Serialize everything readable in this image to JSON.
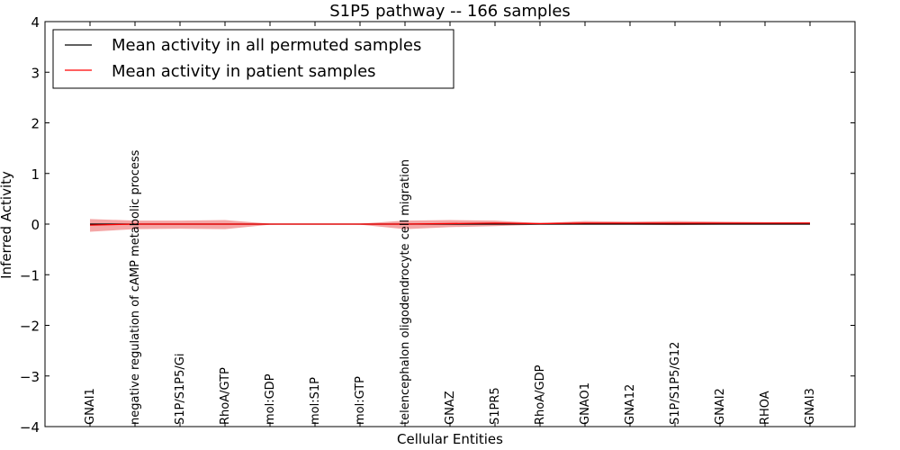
{
  "chart_data": {
    "type": "line",
    "title": "S1P5 pathway -- 166 samples",
    "xlabel": "Cellular Entities",
    "ylabel": "Inferred Activity",
    "ylim": [
      -4,
      4
    ],
    "yticks": [
      -4,
      -3,
      -2,
      -1,
      0,
      1,
      2,
      3,
      4
    ],
    "categories": [
      "GNAI1",
      "negative regulation of cAMP metabolic process",
      "S1P/S1P5/Gi",
      "RhoA/GTP",
      "mol:GDP",
      "mol:S1P",
      "mol:GTP",
      "telencephalon oligodendrocyte cell migration",
      "GNAZ",
      "S1PR5",
      "RhoA/GDP",
      "GNAO1",
      "GNA12",
      "S1P/S1P5/G12",
      "GNAI2",
      "RHOA",
      "GNAI3"
    ],
    "series": [
      {
        "name": "Mean activity in all permuted samples",
        "color": "#000000",
        "values": [
          0.0,
          0.0,
          0.0,
          0.0,
          0.0,
          0.0,
          0.0,
          0.0,
          0.0,
          0.0,
          0.0,
          0.0,
          0.0,
          0.0,
          0.0,
          0.0,
          0.0
        ]
      },
      {
        "name": "Mean activity in patient samples",
        "color": "#ff0000",
        "values": [
          -0.02,
          0.0,
          0.0,
          0.0,
          0.0,
          0.0,
          0.0,
          0.0,
          0.01,
          0.02,
          0.01,
          0.02,
          0.02,
          0.02,
          0.02,
          0.02,
          0.02
        ],
        "band_upper": [
          0.1,
          0.07,
          0.07,
          0.08,
          0.01,
          0.0,
          0.01,
          0.07,
          0.08,
          0.07,
          0.02,
          0.06,
          0.05,
          0.06,
          0.05,
          0.04,
          0.04
        ],
        "band_lower": [
          -0.15,
          -0.1,
          -0.09,
          -0.1,
          -0.01,
          0.0,
          -0.01,
          -0.1,
          -0.06,
          -0.04,
          -0.01,
          -0.01,
          -0.01,
          -0.02,
          -0.01,
          -0.01,
          -0.01
        ]
      }
    ],
    "legend_position": "top-left",
    "band_color": "#f08080"
  }
}
